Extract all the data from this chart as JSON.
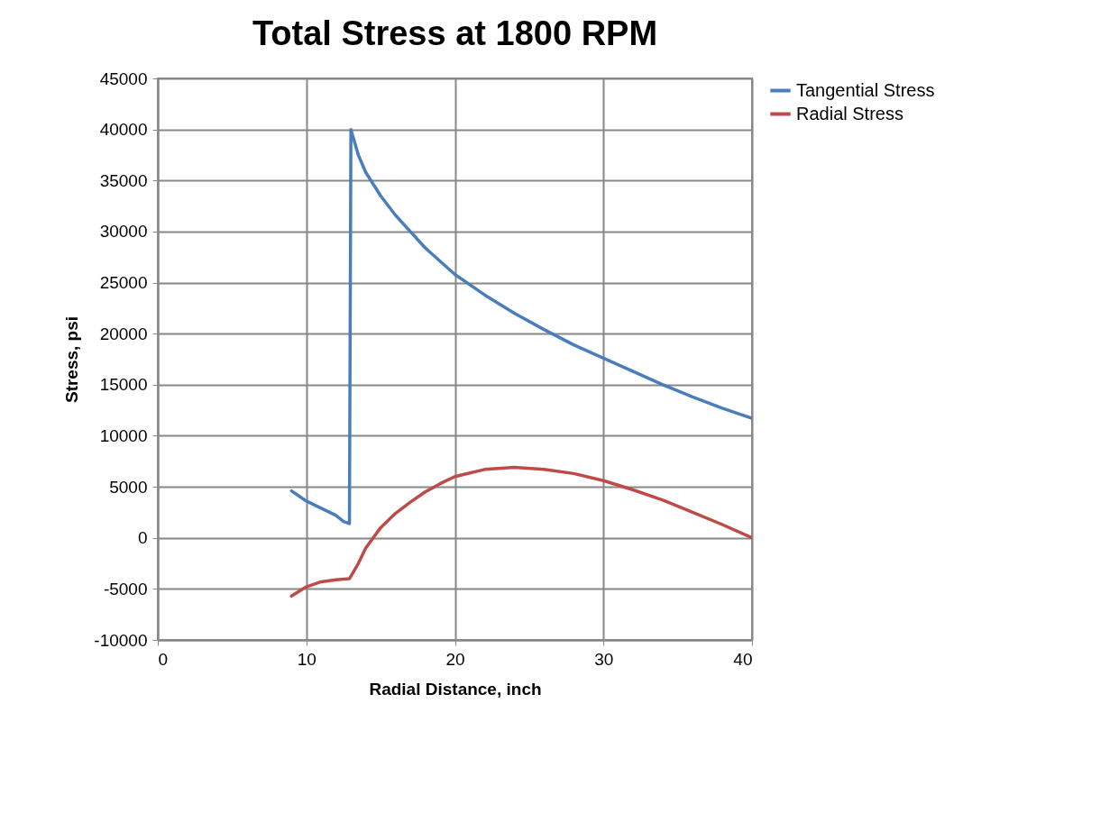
{
  "chart_data": {
    "type": "line",
    "title": "Total Stress at 1800 RPM",
    "xlabel": "Radial Distance, inch",
    "ylabel": "Stress, psi",
    "xlim": [
      0,
      40
    ],
    "xticks": [
      0,
      10,
      20,
      30,
      40
    ],
    "ylim": [
      -10000,
      45000
    ],
    "yticks": [
      -10000,
      -5000,
      0,
      5000,
      10000,
      15000,
      20000,
      25000,
      30000,
      35000,
      40000,
      45000
    ],
    "grid": true,
    "legend": "right",
    "marker": "none",
    "line_style": "solid",
    "series": [
      {
        "name": "Tangential Stress",
        "color": "#4a7ebb",
        "x": [
          9,
          10,
          11,
          12,
          12.5,
          12.9,
          13,
          13.5,
          14,
          15,
          16,
          17,
          18,
          20,
          22,
          24,
          26,
          28,
          30,
          32,
          34,
          36,
          38,
          40
        ],
        "values": [
          4600,
          3600,
          2900,
          2200,
          1600,
          1400,
          40000,
          37500,
          35800,
          33500,
          31600,
          30000,
          28400,
          25800,
          23800,
          22000,
          20400,
          18900,
          17600,
          16300,
          15000,
          13800,
          12700,
          11700
        ]
      },
      {
        "name": "Radial Stress",
        "color": "#be4b48",
        "x": [
          9,
          10,
          11,
          12,
          12.9,
          13.5,
          14,
          15,
          16,
          17,
          18,
          19,
          20,
          22,
          24,
          26,
          28,
          30,
          32,
          34,
          36,
          38,
          40
        ],
        "values": [
          -5700,
          -4800,
          -4300,
          -4100,
          -4000,
          -2500,
          -1000,
          1000,
          2400,
          3500,
          4500,
          5300,
          6000,
          6700,
          6900,
          6700,
          6300,
          5600,
          4700,
          3700,
          2500,
          1300,
          0
        ]
      }
    ]
  }
}
